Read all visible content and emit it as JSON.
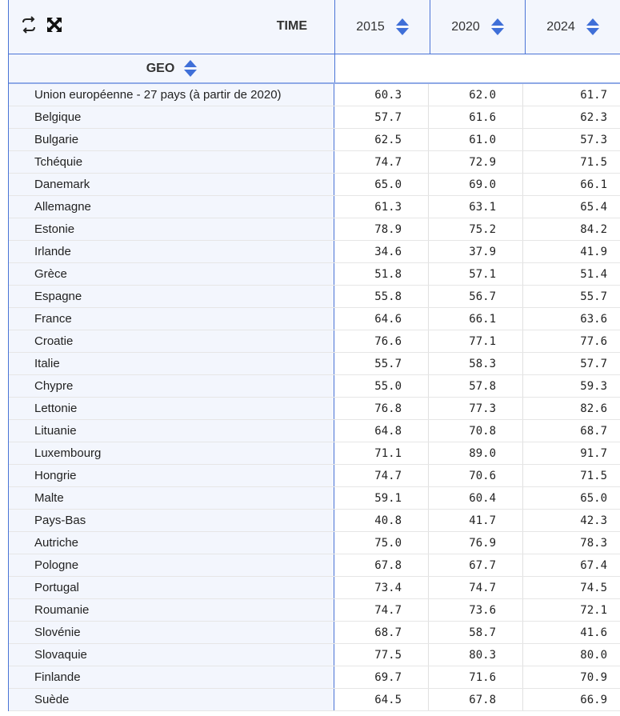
{
  "header": {
    "time_label": "TIME",
    "geo_label": "GEO",
    "years": [
      "2015",
      "2020",
      "2024"
    ],
    "icons": {
      "swap": "swap-axes-icon",
      "expand": "fullscreen-icon",
      "sort": "sort-icon"
    },
    "accent_color": "#3f6fd8"
  },
  "rows": [
    {
      "geo": "Union européenne - 27 pays (à partir de 2020)",
      "values": [
        "60.3",
        "62.0",
        "61.7"
      ]
    },
    {
      "geo": "Belgique",
      "values": [
        "57.7",
        "61.6",
        "62.3"
      ]
    },
    {
      "geo": "Bulgarie",
      "values": [
        "62.5",
        "61.0",
        "57.3"
      ]
    },
    {
      "geo": "Tchéquie",
      "values": [
        "74.7",
        "72.9",
        "71.5"
      ]
    },
    {
      "geo": "Danemark",
      "values": [
        "65.0",
        "69.0",
        "66.1"
      ]
    },
    {
      "geo": "Allemagne",
      "values": [
        "61.3",
        "63.1",
        "65.4"
      ]
    },
    {
      "geo": "Estonie",
      "values": [
        "78.9",
        "75.2",
        "84.2"
      ]
    },
    {
      "geo": "Irlande",
      "values": [
        "34.6",
        "37.9",
        "41.9"
      ]
    },
    {
      "geo": "Grèce",
      "values": [
        "51.8",
        "57.1",
        "51.4"
      ]
    },
    {
      "geo": "Espagne",
      "values": [
        "55.8",
        "56.7",
        "55.7"
      ]
    },
    {
      "geo": "France",
      "values": [
        "64.6",
        "66.1",
        "63.6"
      ]
    },
    {
      "geo": "Croatie",
      "values": [
        "76.6",
        "77.1",
        "77.6"
      ]
    },
    {
      "geo": "Italie",
      "values": [
        "55.7",
        "58.3",
        "57.7"
      ]
    },
    {
      "geo": "Chypre",
      "values": [
        "55.0",
        "57.8",
        "59.3"
      ]
    },
    {
      "geo": "Lettonie",
      "values": [
        "76.8",
        "77.3",
        "82.6"
      ]
    },
    {
      "geo": "Lituanie",
      "values": [
        "64.8",
        "70.8",
        "68.7"
      ]
    },
    {
      "geo": "Luxembourg",
      "values": [
        "71.1",
        "89.0",
        "91.7"
      ]
    },
    {
      "geo": "Hongrie",
      "values": [
        "74.7",
        "70.6",
        "71.5"
      ]
    },
    {
      "geo": "Malte",
      "values": [
        "59.1",
        "60.4",
        "65.0"
      ]
    },
    {
      "geo": "Pays-Bas",
      "values": [
        "40.8",
        "41.7",
        "42.3"
      ]
    },
    {
      "geo": "Autriche",
      "values": [
        "75.0",
        "76.9",
        "78.3"
      ]
    },
    {
      "geo": "Pologne",
      "values": [
        "67.8",
        "67.7",
        "67.4"
      ]
    },
    {
      "geo": "Portugal",
      "values": [
        "73.4",
        "74.7",
        "74.5"
      ]
    },
    {
      "geo": "Roumanie",
      "values": [
        "74.7",
        "73.6",
        "72.1"
      ]
    },
    {
      "geo": "Slovénie",
      "values": [
        "68.7",
        "58.7",
        "41.6"
      ]
    },
    {
      "geo": "Slovaquie",
      "values": [
        "77.5",
        "80.3",
        "80.0"
      ]
    },
    {
      "geo": "Finlande",
      "values": [
        "69.7",
        "71.6",
        "70.9"
      ]
    },
    {
      "geo": "Suède",
      "values": [
        "64.5",
        "67.8",
        "66.9"
      ]
    }
  ]
}
